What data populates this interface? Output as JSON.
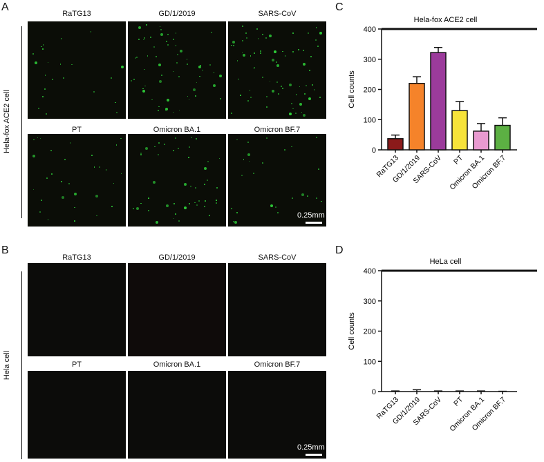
{
  "panels": {
    "A": {
      "letter": "A",
      "row_label": "Hela-fox ACE2 cell",
      "scale": "0.25mm",
      "titles": [
        "RaTG13",
        "GD/1/2019",
        "SARS-CoV",
        "PT",
        "Omicron BA.1",
        "Omicron BF.7"
      ]
    },
    "B": {
      "letter": "B",
      "row_label": "Hela cell",
      "scale": "0.25mm",
      "titles": [
        "RaTG13",
        "GD/1/2019",
        "SARS-CoV",
        "PT",
        "Omicron BA.1",
        "Omicron BF.7"
      ]
    },
    "C": {
      "letter": "C"
    },
    "D": {
      "letter": "D"
    }
  },
  "chart_data": [
    {
      "type": "bar",
      "title": "Hela-fox ACE2 cell",
      "xlabel": "",
      "ylabel": "Cell counts",
      "ylim": [
        0,
        400
      ],
      "yticks": [
        "0",
        "100",
        "200",
        "300",
        "400"
      ],
      "categories": [
        "RaTG13",
        "GD/1/2019",
        "SARS-CoV",
        "PT",
        "Omicron BA.1",
        "Omicron BF.7"
      ],
      "values": [
        37,
        220,
        322,
        130,
        62,
        81
      ],
      "errors": [
        12,
        22,
        17,
        30,
        25,
        25
      ],
      "colors": [
        "#8b1a1a",
        "#f5832a",
        "#9b3b9b",
        "#f7e33a",
        "#e89ad0",
        "#5cb043"
      ]
    },
    {
      "type": "bar",
      "title": "HeLa cell",
      "xlabel": "",
      "ylabel": "Cell counts",
      "ylim": [
        0,
        400
      ],
      "yticks": [
        "0",
        "100",
        "200",
        "300",
        "400"
      ],
      "categories": [
        "RaTG13",
        "GD/1/2019",
        "SARS-CoV",
        "PT",
        "Omicron BA.1",
        "Omicron BF.7"
      ],
      "values": [
        0,
        0,
        0,
        0,
        0,
        0
      ],
      "errors": [
        2,
        6,
        2,
        2,
        2,
        1
      ],
      "colors": [
        "#8b1a1a",
        "#f5832a",
        "#9b3b9b",
        "#f7e33a",
        "#e89ad0",
        "#5cb043"
      ]
    }
  ]
}
